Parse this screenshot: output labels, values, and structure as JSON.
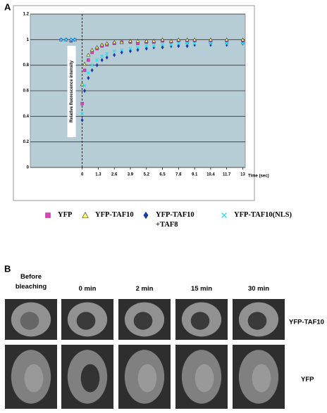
{
  "panel_a_label": "A",
  "chart_data": {
    "type": "scatter",
    "y_label": "Relative fluorescence intensity",
    "x_label": "Time (sec)",
    "xlim": [
      -4.2,
      13.2
    ],
    "ylim": [
      0,
      1.2
    ],
    "xticks": [
      0,
      1.3,
      2.6,
      3.9,
      5.2,
      6.5,
      7.8,
      9.1,
      10.4,
      11.7,
      13
    ],
    "yticks": [
      0,
      0.2,
      0.4,
      0.6,
      0.8,
      1,
      1.2
    ],
    "grid": true,
    "background": "#b7cdd6",
    "bleach_line": 0,
    "x": [
      -1.7,
      -1.3,
      -0.9,
      -0.6,
      0,
      0.2,
      0.5,
      0.8,
      1.2,
      1.6,
      2.0,
      2.6,
      3.2,
      3.9,
      4.5,
      5.2,
      5.8,
      6.5,
      7.2,
      7.8,
      8.5,
      9.1,
      10.4,
      11.7,
      13
    ],
    "series": [
      {
        "name": "YFP",
        "color": "#e040c0",
        "marker": "square",
        "values": [
          1.0,
          1.0,
          0.99,
          1.0,
          0.5,
          0.76,
          0.84,
          0.9,
          0.93,
          0.95,
          0.96,
          0.97,
          0.98,
          0.98,
          0.97,
          0.98,
          0.98,
          0.99,
          0.98,
          0.99,
          0.98,
          0.99,
          0.98,
          0.98,
          0.98
        ]
      },
      {
        "name": "YFP-TAF10",
        "color": "#ffff66",
        "marker": "triangle",
        "values": [
          1.0,
          1.0,
          1.0,
          1.0,
          0.65,
          0.81,
          0.88,
          0.92,
          0.94,
          0.96,
          0.97,
          0.98,
          0.98,
          0.99,
          0.99,
          0.99,
          0.99,
          1.0,
          0.99,
          1.0,
          1.0,
          1.0,
          1.0,
          1.0,
          1.0
        ]
      },
      {
        "name": "YFP-TAF10\n+TAF8",
        "color": "#1a3aa8",
        "marker": "diamond",
        "values": [
          1.0,
          1.0,
          1.0,
          1.0,
          0.37,
          0.6,
          0.7,
          0.76,
          0.8,
          0.84,
          0.86,
          0.88,
          0.9,
          0.91,
          0.92,
          0.93,
          0.94,
          0.94,
          0.95,
          0.95,
          0.95,
          0.96,
          0.96,
          0.96,
          0.97
        ]
      },
      {
        "name": "YFP-TAF10(NLS)",
        "color": "#30e0f0",
        "marker": "x",
        "values": [
          1.0,
          1.0,
          1.0,
          1.0,
          0.42,
          0.64,
          0.74,
          0.8,
          0.84,
          0.87,
          0.89,
          0.91,
          0.92,
          0.93,
          0.94,
          0.95,
          0.95,
          0.96,
          0.96,
          0.97,
          0.97,
          0.97,
          0.97,
          0.97,
          0.97
        ]
      }
    ]
  },
  "panel_b": {
    "label": "B",
    "columns": [
      "Before\nbleaching",
      "0 min",
      "2 min",
      "15 min",
      "30 min"
    ],
    "rows": [
      "YFP-TAF10",
      "YFP"
    ]
  }
}
